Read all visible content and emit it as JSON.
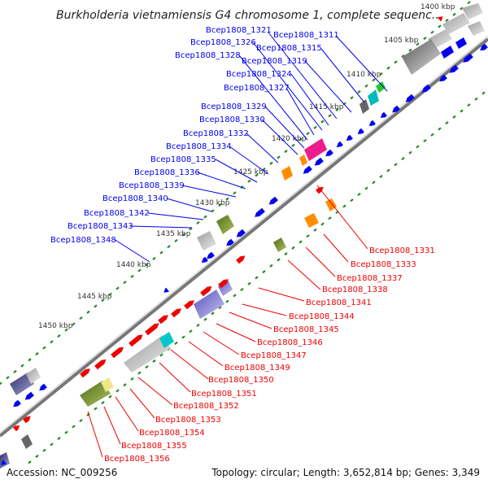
{
  "title": "Burkholderia vietnamiensis G4 chromosome 1, complete sequenc...",
  "footer": {
    "accession": "Accession: NC_009256",
    "summary": "Topology: circular; Length: 3,652,814 bp; Genes: 3,349"
  },
  "ticks": [
    "1400 kbp",
    "1405 kbp",
    "1410 kbp",
    "1415 kbp",
    "1420 kbp",
    "1425 kbp",
    "1430 kbp",
    "1435 kbp",
    "1440 kbp",
    "1445 kbp",
    "1450 kbp"
  ],
  "upper_labels": [
    "Bcep1808_1311",
    "Bcep1808_1315",
    "Bcep1808_1319",
    "Bcep1808_1321",
    "Bcep1808_1324",
    "Bcep1808_1326",
    "Bcep1808_1327",
    "Bcep1808_1328",
    "Bcep1808_1329",
    "Bcep1808_1330",
    "Bcep1808_1332",
    "Bcep1808_1334",
    "Bcep1808_1335",
    "Bcep1808_1336",
    "Bcep1808_1339",
    "Bcep1808_1340",
    "Bcep1808_1342",
    "Bcep1808_1343",
    "Bcep1808_1348"
  ],
  "lower_labels": [
    "Bcep1808_1331",
    "Bcep1808_1333",
    "Bcep1808_1337",
    "Bcep1808_1338",
    "Bcep1808_1341",
    "Bcep1808_1344",
    "Bcep1808_1345",
    "Bcep1808_1346",
    "Bcep1808_1347",
    "Bcep1808_1349",
    "Bcep1808_1350",
    "Bcep1808_1351",
    "Bcep1808_1352",
    "Bcep1808_1353",
    "Bcep1808_1354",
    "Bcep1808_1355",
    "Bcep1808_1356"
  ],
  "colors": {
    "forward": "#0000ee",
    "reverse": "#ee0000",
    "backbone": "#888888",
    "dots": "#228b22"
  }
}
